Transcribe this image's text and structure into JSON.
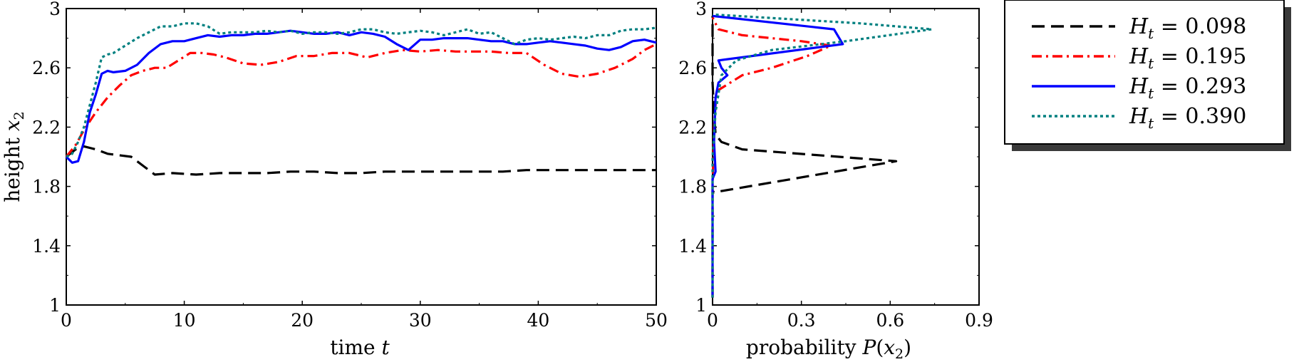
{
  "chart_data": [
    {
      "type": "line",
      "xlabel": "time t",
      "ylabel": "height x2",
      "xlim": [
        0,
        50
      ],
      "ylim": [
        1,
        3
      ],
      "xticks": [
        "0",
        "10",
        "20",
        "30",
        "40",
        "50"
      ],
      "yticks": [
        "1",
        "1.4",
        "1.8",
        "2.2",
        "2.6",
        "3"
      ],
      "grid": false,
      "series": [
        {
          "name": "H_t = 0.098",
          "color": "#000000",
          "style": "dashed",
          "x": [
            0,
            0.8,
            1.5,
            2.5,
            3.5,
            4.5,
            5.5,
            6.5,
            7.5,
            9,
            11,
            13,
            15,
            17,
            19,
            21,
            23,
            25,
            27,
            29,
            31,
            33,
            35,
            37,
            39,
            41,
            43,
            45,
            47,
            50
          ],
          "y": [
            2.0,
            2.05,
            2.07,
            2.05,
            2.02,
            2.01,
            2.0,
            1.94,
            1.88,
            1.89,
            1.88,
            1.89,
            1.89,
            1.89,
            1.9,
            1.9,
            1.89,
            1.89,
            1.9,
            1.9,
            1.9,
            1.9,
            1.9,
            1.9,
            1.91,
            1.91,
            1.91,
            1.91,
            1.91,
            1.91
          ]
        },
        {
          "name": "H_t = 0.195",
          "color": "#ff0000",
          "style": "dashdot",
          "x": [
            0,
            0.8,
            1.5,
            2.5,
            3.5,
            4.5,
            5.5,
            6.5,
            7.5,
            8.5,
            9.5,
            10.5,
            11.5,
            12.5,
            13.5,
            15,
            16.5,
            18,
            19.5,
            21,
            22.5,
            24,
            25.5,
            27,
            28.5,
            30,
            31.5,
            33,
            34.5,
            36,
            37.5,
            39,
            40.5,
            42,
            43.5,
            45,
            46.5,
            48,
            49,
            50
          ],
          "y": [
            2.0,
            2.08,
            2.18,
            2.3,
            2.4,
            2.48,
            2.55,
            2.58,
            2.6,
            2.6,
            2.65,
            2.7,
            2.7,
            2.69,
            2.67,
            2.63,
            2.62,
            2.64,
            2.68,
            2.68,
            2.7,
            2.7,
            2.67,
            2.7,
            2.72,
            2.71,
            2.72,
            2.71,
            2.71,
            2.71,
            2.7,
            2.7,
            2.62,
            2.56,
            2.54,
            2.56,
            2.6,
            2.66,
            2.72,
            2.76
          ]
        },
        {
          "name": "H_t = 0.293",
          "color": "#0000ff",
          "style": "solid",
          "x": [
            0,
            0.5,
            1,
            1.5,
            2,
            2.5,
            3,
            3.5,
            4,
            5,
            6,
            7,
            8,
            9,
            10,
            11,
            12,
            13,
            14,
            15,
            16,
            17,
            18,
            19,
            20,
            21,
            22,
            23,
            24,
            25,
            26,
            27,
            28,
            29,
            30,
            31,
            32,
            33,
            34,
            35,
            36,
            37,
            38,
            39,
            40,
            41,
            42,
            43,
            44,
            45,
            46,
            47,
            48,
            49,
            50
          ],
          "y": [
            2.0,
            1.96,
            1.97,
            2.1,
            2.3,
            2.42,
            2.56,
            2.58,
            2.57,
            2.58,
            2.62,
            2.7,
            2.76,
            2.78,
            2.78,
            2.8,
            2.82,
            2.81,
            2.82,
            2.82,
            2.83,
            2.83,
            2.84,
            2.85,
            2.84,
            2.83,
            2.83,
            2.84,
            2.82,
            2.84,
            2.83,
            2.81,
            2.76,
            2.72,
            2.79,
            2.79,
            2.8,
            2.8,
            2.8,
            2.79,
            2.78,
            2.78,
            2.76,
            2.76,
            2.77,
            2.78,
            2.77,
            2.76,
            2.75,
            2.73,
            2.72,
            2.74,
            2.78,
            2.79,
            2.77
          ]
        },
        {
          "name": "H_t = 0.390",
          "color": "#008080",
          "style": "dotted",
          "x": [
            0,
            0.5,
            1,
            1.5,
            2,
            2.5,
            3,
            3.5,
            4,
            5,
            6,
            7,
            8,
            9,
            10,
            11,
            12,
            13,
            14,
            15,
            16,
            17,
            18,
            19,
            20,
            21,
            22,
            23,
            24,
            25,
            26,
            27,
            28,
            29,
            30,
            31,
            32,
            33,
            34,
            35,
            36,
            37,
            38,
            39,
            40,
            41,
            42,
            43,
            44,
            45,
            46,
            47,
            48,
            49,
            50
          ],
          "y": [
            2.0,
            2.02,
            2.1,
            2.2,
            2.35,
            2.5,
            2.67,
            2.69,
            2.7,
            2.75,
            2.8,
            2.84,
            2.88,
            2.88,
            2.9,
            2.9,
            2.88,
            2.83,
            2.84,
            2.84,
            2.84,
            2.85,
            2.84,
            2.85,
            2.83,
            2.84,
            2.84,
            2.83,
            2.84,
            2.86,
            2.86,
            2.84,
            2.83,
            2.84,
            2.85,
            2.84,
            2.82,
            2.84,
            2.86,
            2.83,
            2.84,
            2.8,
            2.76,
            2.79,
            2.8,
            2.79,
            2.8,
            2.81,
            2.8,
            2.82,
            2.82,
            2.85,
            2.86,
            2.86,
            2.87
          ]
        }
      ]
    },
    {
      "type": "line",
      "xlabel": "probability P(x2)",
      "xlim": [
        0,
        0.9
      ],
      "ylim": [
        1,
        3
      ],
      "xticks": [
        "0",
        "0.3",
        "0.6",
        "0.9"
      ],
      "yticks": [
        "1",
        "1.4",
        "1.8",
        "2.2",
        "2.6",
        "3"
      ],
      "grid": false,
      "series": [
        {
          "name": "H_t = 0.098",
          "color": "#000000",
          "style": "dashed",
          "p": [
            0,
            0,
            0.0,
            0.005,
            0.62,
            0.1,
            0.03,
            0.01,
            0.005,
            0.0,
            0.0,
            0.0,
            0.0,
            0.0
          ],
          "y": [
            1.05,
            1.75,
            1.77,
            1.76,
            1.97,
            2.05,
            2.1,
            2.15,
            2.3,
            2.5,
            2.7,
            2.85,
            2.93,
            2.95
          ]
        },
        {
          "name": "H_t = 0.195",
          "color": "#ff0000",
          "style": "dashdot",
          "p": [
            0,
            0,
            0.005,
            0.01,
            0.02,
            0.06,
            0.1,
            0.2,
            0.32,
            0.4,
            0.3,
            0.1,
            0.02,
            0.0
          ],
          "y": [
            1.05,
            1.8,
            2.2,
            2.35,
            2.45,
            2.5,
            2.55,
            2.6,
            2.68,
            2.75,
            2.78,
            2.82,
            2.86,
            2.94
          ]
        },
        {
          "name": "H_t = 0.293",
          "color": "#0000ff",
          "style": "solid",
          "p": [
            0,
            0,
            0.01,
            0.005,
            0.01,
            0.02,
            0.05,
            0.03,
            0.02,
            0.44,
            0.41,
            0.0
          ],
          "y": [
            1.05,
            1.85,
            1.9,
            2.1,
            2.4,
            2.5,
            2.55,
            2.6,
            2.65,
            2.76,
            2.86,
            2.95
          ]
        },
        {
          "name": "H_t = 0.390",
          "color": "#008080",
          "style": "dotted",
          "p": [
            0,
            0,
            0.005,
            0.01,
            0.03,
            0.08,
            0.2,
            0.45,
            0.74,
            0.5,
            0.0
          ],
          "y": [
            1.05,
            2.0,
            2.15,
            2.3,
            2.55,
            2.65,
            2.72,
            2.78,
            2.86,
            2.9,
            2.96
          ]
        }
      ]
    }
  ],
  "legend": {
    "entries": [
      {
        "prefix": "H",
        "sub": "t",
        "text": " = 0.098",
        "color": "#000000",
        "style": "dashed"
      },
      {
        "prefix": "H",
        "sub": "t",
        "text": " = 0.195",
        "color": "#ff0000",
        "style": "dashdot"
      },
      {
        "prefix": "H",
        "sub": "t",
        "text": " = 0.293",
        "color": "#0000ff",
        "style": "solid"
      },
      {
        "prefix": "H",
        "sub": "t",
        "text": " = 0.390",
        "color": "#008080",
        "style": "dotted"
      }
    ]
  },
  "labels": {
    "left_x_main": "time ",
    "left_x_var": "t",
    "left_y_main": "height ",
    "left_y_var": "x",
    "left_y_sub": "2",
    "right_x_main": "probability ",
    "right_x_var": "P",
    "right_x_open": "(",
    "right_x_var2": "x",
    "right_x_sub": "2",
    "right_x_close": ")"
  }
}
